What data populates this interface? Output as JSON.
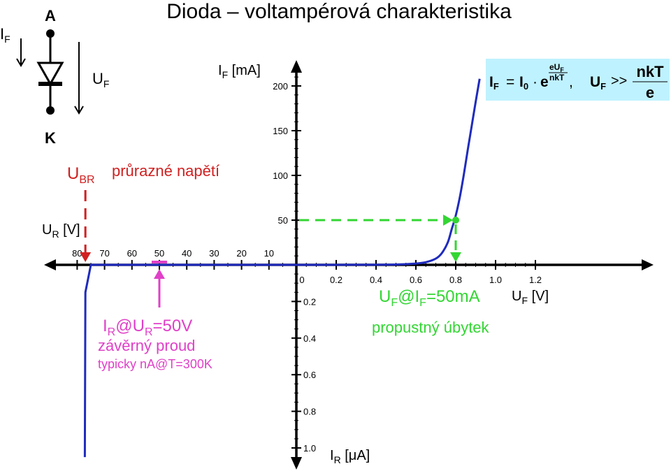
{
  "title": "Dioda – voltampérová charakteristika",
  "colors": {
    "axis": "#000000",
    "curve": "#1f2bbd",
    "breakdown": "#d12020",
    "reverse_note": "#e040c8",
    "forward_note": "#33d633",
    "formula_bg": "#bff2ff"
  },
  "symbol": {
    "current_label_main": "I",
    "current_label_sub": "F",
    "anode": "A",
    "cathode": "K",
    "voltage_label_main": "U",
    "voltage_label_sub": "F"
  },
  "formula": {
    "lhs_main": "I",
    "lhs_sub": "F",
    "eq": "=",
    "i0_main": "I",
    "i0_sub": "0",
    "dot": "·",
    "e": "e",
    "exp_num_main": "eU",
    "exp_num_sub": "F",
    "exp_den": "nkT",
    "comma": ",",
    "cond_main": "U",
    "cond_sub": "F",
    "cond_op": ">>",
    "cond_num": "nkT",
    "cond_den": "e"
  },
  "notes": {
    "breakdown_main": "U",
    "breakdown_sub": "BR",
    "breakdown_text": "průrazné napětí",
    "reverse_line1_a": "I",
    "reverse_line1_b": "R",
    "reverse_line1_c": "@U",
    "reverse_line1_d": "R",
    "reverse_line1_e": "=50V",
    "reverse_line2": "závěrný proud",
    "reverse_line3": "typicky nA@T=300K",
    "forward_line1_a": "U",
    "forward_line1_b": "F",
    "forward_line1_c": "@I",
    "forward_line1_d": "F",
    "forward_line1_e": "=50mA",
    "forward_line2": "propustný úbytek"
  },
  "chart_data": {
    "type": "line",
    "axes": {
      "forward_current": {
        "label_main": "I",
        "label_sub": "F",
        "label_unit": " [mA]",
        "ticks": [
          "50",
          "100",
          "150",
          "200"
        ],
        "values": [
          50,
          100,
          150,
          200
        ],
        "range": [
          0,
          215
        ]
      },
      "forward_voltage": {
        "label_main": "U",
        "label_sub": "F",
        "label_unit": " [V]",
        "ticks": [
          "0",
          "0.2",
          "0.4",
          "0.6",
          "0.8",
          "1.0",
          "1.2"
        ],
        "values": [
          0,
          0.2,
          0.4,
          0.6,
          0.8,
          1.0,
          1.2
        ],
        "range": [
          0,
          1.25
        ]
      },
      "reverse_voltage": {
        "label_main": "U",
        "label_sub": "R",
        "label_unit": " [V]",
        "ticks": [
          "10",
          "20",
          "30",
          "40",
          "50",
          "60",
          "70",
          "80"
        ],
        "values": [
          10,
          20,
          30,
          40,
          50,
          60,
          70,
          80
        ],
        "range": [
          0,
          85
        ]
      },
      "reverse_current": {
        "label_main": "I",
        "label_sub": "R",
        "label_unit": " [μA]",
        "ticks": [
          "0.2",
          "0.4",
          "0.6",
          "0.8",
          "1.0"
        ],
        "values": [
          0.2,
          0.4,
          0.6,
          0.8,
          1.0
        ],
        "range": [
          0,
          1.05
        ]
      }
    },
    "forward_curve": {
      "x": [
        0,
        0.3,
        0.5,
        0.6,
        0.65,
        0.7,
        0.73,
        0.76,
        0.78,
        0.8,
        0.82,
        0.84,
        0.86,
        0.88,
        0.9,
        0.92
      ],
      "y": [
        0,
        0.05,
        0.4,
        1.5,
        3,
        7,
        13,
        25,
        40,
        55,
        75,
        100,
        128,
        155,
        182,
        208
      ]
    },
    "reverse_curve": {
      "voltage": [
        0,
        20,
        40,
        60,
        75,
        77,
        77.2
      ],
      "current": [
        0,
        0,
        0,
        0,
        0,
        0.15,
        1.05
      ]
    },
    "operating_point": {
      "voltage": 0.8,
      "current": 50
    },
    "breakdown_voltage": 77,
    "reverse_marker_voltage": 50
  }
}
